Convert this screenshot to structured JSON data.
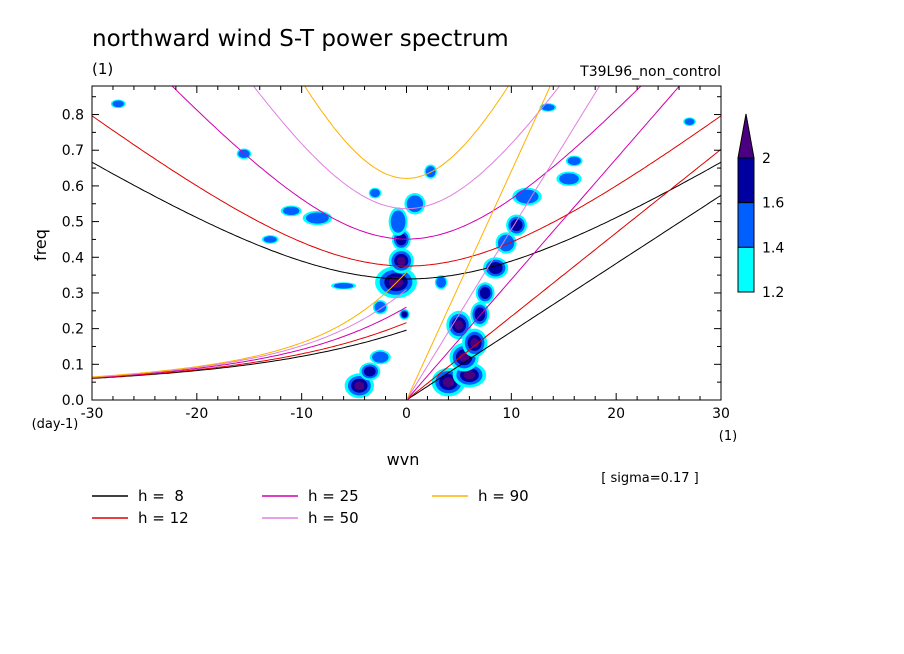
{
  "chart_data": {
    "type": "contour",
    "title": "northward wind S-T power spectrum",
    "subtitle_left": "(1)",
    "subtitle_right": "T39L96_non_control",
    "xlabel": "wvn",
    "ylabel": "freq",
    "x_unit": "(1)",
    "y_unit": "(day-1)",
    "xlim": [
      -30,
      30
    ],
    "ylim": [
      0,
      0.88
    ],
    "xticks": [
      -30,
      -20,
      -10,
      0,
      10,
      20,
      30
    ],
    "xtick_labels": [
      "-30",
      "-20",
      "-10",
      "0",
      "10",
      "20",
      "30"
    ],
    "yticks": [
      0,
      0.1,
      0.2,
      0.3,
      0.4,
      0.5,
      0.6,
      0.7,
      0.8
    ],
    "ytick_labels": [
      "0.0",
      "0.1",
      "0.2",
      "0.3",
      "0.4",
      "0.5",
      "0.6",
      "0.7",
      "0.8"
    ],
    "sigma_note": "[ sigma=0.17 ]",
    "colorbar": {
      "labels": [
        "1.2",
        "1.4",
        "1.6",
        "2"
      ],
      "levels": [
        1.2,
        1.4,
        1.6,
        2.0
      ],
      "colors": [
        "#00ffff",
        "#0060ff",
        "#0000a0",
        "#4b0082"
      ]
    },
    "legend": [
      {
        "label": "h =  8",
        "color": "#000000",
        "h": 8
      },
      {
        "label": "h = 12",
        "color": "#e00000",
        "h": 12
      },
      {
        "label": "h = 25",
        "color": "#d000b0",
        "h": 25
      },
      {
        "label": "h = 50",
        "color": "#e080e0",
        "h": 50
      },
      {
        "label": "h = 90",
        "color": "#ffb000",
        "h": 90
      }
    ],
    "blobs": [
      {
        "x": -1.0,
        "y": 0.33,
        "rx": 2.0,
        "ry": 0.045,
        "level": 3
      },
      {
        "x": -0.5,
        "y": 0.39,
        "rx": 1.2,
        "ry": 0.035,
        "level": 3
      },
      {
        "x": -0.5,
        "y": 0.45,
        "rx": 0.9,
        "ry": 0.03,
        "level": 2
      },
      {
        "x": -0.8,
        "y": 0.5,
        "rx": 0.9,
        "ry": 0.04,
        "level": 1
      },
      {
        "x": 0.8,
        "y": 0.55,
        "rx": 1.0,
        "ry": 0.03,
        "level": 1
      },
      {
        "x": -4.5,
        "y": 0.04,
        "rx": 1.4,
        "ry": 0.035,
        "level": 3
      },
      {
        "x": -3.5,
        "y": 0.08,
        "rx": 1.0,
        "ry": 0.025,
        "level": 2
      },
      {
        "x": -2.5,
        "y": 0.12,
        "rx": 1.0,
        "ry": 0.02,
        "level": 1
      },
      {
        "x": 4.0,
        "y": 0.05,
        "rx": 1.6,
        "ry": 0.04,
        "level": 3
      },
      {
        "x": 6.0,
        "y": 0.07,
        "rx": 1.6,
        "ry": 0.035,
        "level": 3
      },
      {
        "x": 5.5,
        "y": 0.12,
        "rx": 1.4,
        "ry": 0.04,
        "level": 3
      },
      {
        "x": 6.5,
        "y": 0.16,
        "rx": 1.2,
        "ry": 0.04,
        "level": 3
      },
      {
        "x": 5.0,
        "y": 0.21,
        "rx": 1.2,
        "ry": 0.04,
        "level": 3
      },
      {
        "x": 7.0,
        "y": 0.24,
        "rx": 0.9,
        "ry": 0.035,
        "level": 2
      },
      {
        "x": 7.5,
        "y": 0.3,
        "rx": 0.9,
        "ry": 0.03,
        "level": 2
      },
      {
        "x": 8.5,
        "y": 0.37,
        "rx": 1.2,
        "ry": 0.03,
        "level": 2
      },
      {
        "x": 9.5,
        "y": 0.44,
        "rx": 1.0,
        "ry": 0.03,
        "level": 1
      },
      {
        "x": 10.5,
        "y": 0.49,
        "rx": 1.0,
        "ry": 0.03,
        "level": 2
      },
      {
        "x": 11.5,
        "y": 0.57,
        "rx": 1.4,
        "ry": 0.025,
        "level": 1
      },
      {
        "x": 15.5,
        "y": 0.62,
        "rx": 1.2,
        "ry": 0.02,
        "level": 1
      },
      {
        "x": 16.0,
        "y": 0.67,
        "rx": 0.8,
        "ry": 0.015,
        "level": 1
      },
      {
        "x": -8.5,
        "y": 0.51,
        "rx": 1.4,
        "ry": 0.02,
        "level": 1
      },
      {
        "x": -11.0,
        "y": 0.53,
        "rx": 1.0,
        "ry": 0.015,
        "level": 1
      },
      {
        "x": 2.3,
        "y": 0.64,
        "rx": 0.6,
        "ry": 0.02,
        "level": 1
      },
      {
        "x": -2.5,
        "y": 0.26,
        "rx": 0.7,
        "ry": 0.02,
        "level": 1
      },
      {
        "x": -6.0,
        "y": 0.32,
        "rx": 1.2,
        "ry": 0.01,
        "level": 1
      },
      {
        "x": -3.0,
        "y": 0.58,
        "rx": 0.6,
        "ry": 0.015,
        "level": 1
      },
      {
        "x": 3.3,
        "y": 0.33,
        "rx": 0.6,
        "ry": 0.02,
        "level": 1
      },
      {
        "x": -15.5,
        "y": 0.69,
        "rx": 0.7,
        "ry": 0.015,
        "level": 1
      },
      {
        "x": -27.5,
        "y": 0.83,
        "rx": 0.7,
        "ry": 0.012,
        "level": 1
      },
      {
        "x": 13.5,
        "y": 0.82,
        "rx": 0.8,
        "ry": 0.012,
        "level": 1
      },
      {
        "x": -13.0,
        "y": 0.45,
        "rx": 0.8,
        "ry": 0.012,
        "level": 1
      },
      {
        "x": 27.0,
        "y": 0.78,
        "rx": 0.6,
        "ry": 0.012,
        "level": 1
      },
      {
        "x": -0.2,
        "y": 0.24,
        "rx": 0.5,
        "ry": 0.015,
        "level": 2
      }
    ]
  }
}
